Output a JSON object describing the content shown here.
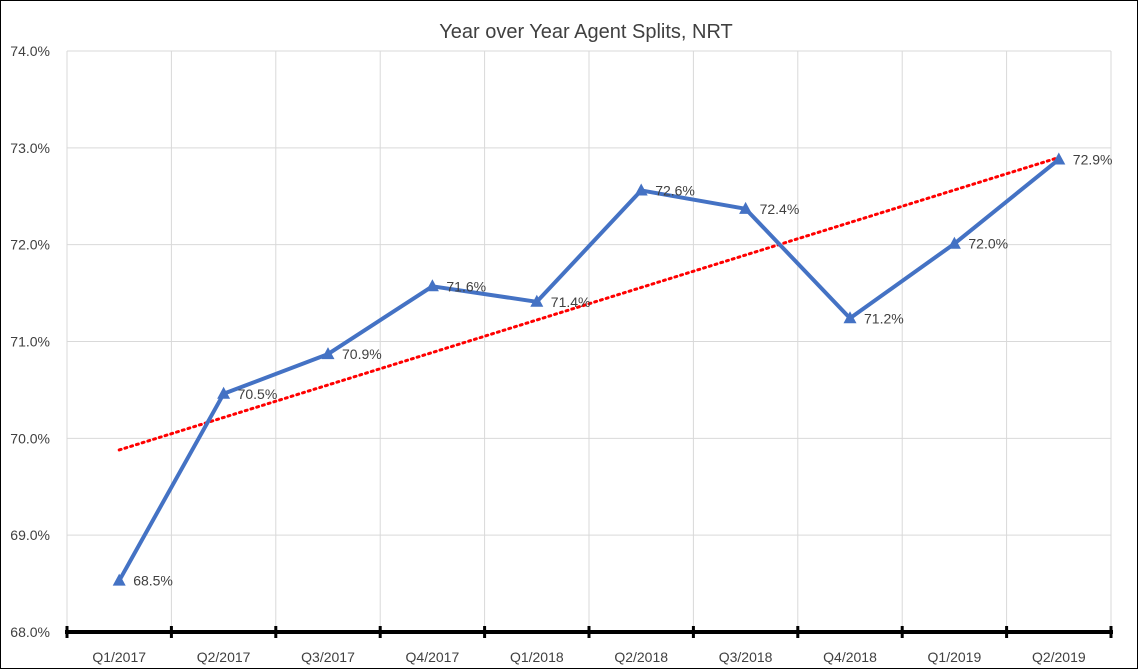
{
  "chart_data": {
    "type": "line",
    "title": "Year over Year Agent Splits, NRT",
    "categories": [
      "Q1/2017",
      "Q2/2017",
      "Q3/2017",
      "Q4/2017",
      "Q1/2018",
      "Q2/2018",
      "Q3/2018",
      "Q4/2018",
      "Q1/2019",
      "Q2/2019"
    ],
    "series": [
      {
        "values": [
          68.53,
          70.46,
          70.87,
          71.57,
          71.41,
          72.56,
          72.37,
          71.24,
          72.01,
          72.88
        ],
        "labels": [
          "68.5%",
          "70.5%",
          "70.9%",
          "71.6%",
          "71.4%",
          "72.6%",
          "72.4%",
          "71.2%",
          "72.0%",
          "72.9%"
        ],
        "color": "#4472C4",
        "marker": "triangle"
      }
    ],
    "trendline": {
      "type": "linear",
      "color": "#FF0000",
      "style": "dotted",
      "start": 69.88,
      "end": 72.9
    },
    "ylim": [
      68.0,
      74.0
    ],
    "yticks": [
      "68.0%",
      "69.0%",
      "70.0%",
      "71.0%",
      "72.0%",
      "73.0%",
      "74.0%"
    ],
    "xlabel": "",
    "ylabel": "",
    "grid": true,
    "legend": "none"
  }
}
